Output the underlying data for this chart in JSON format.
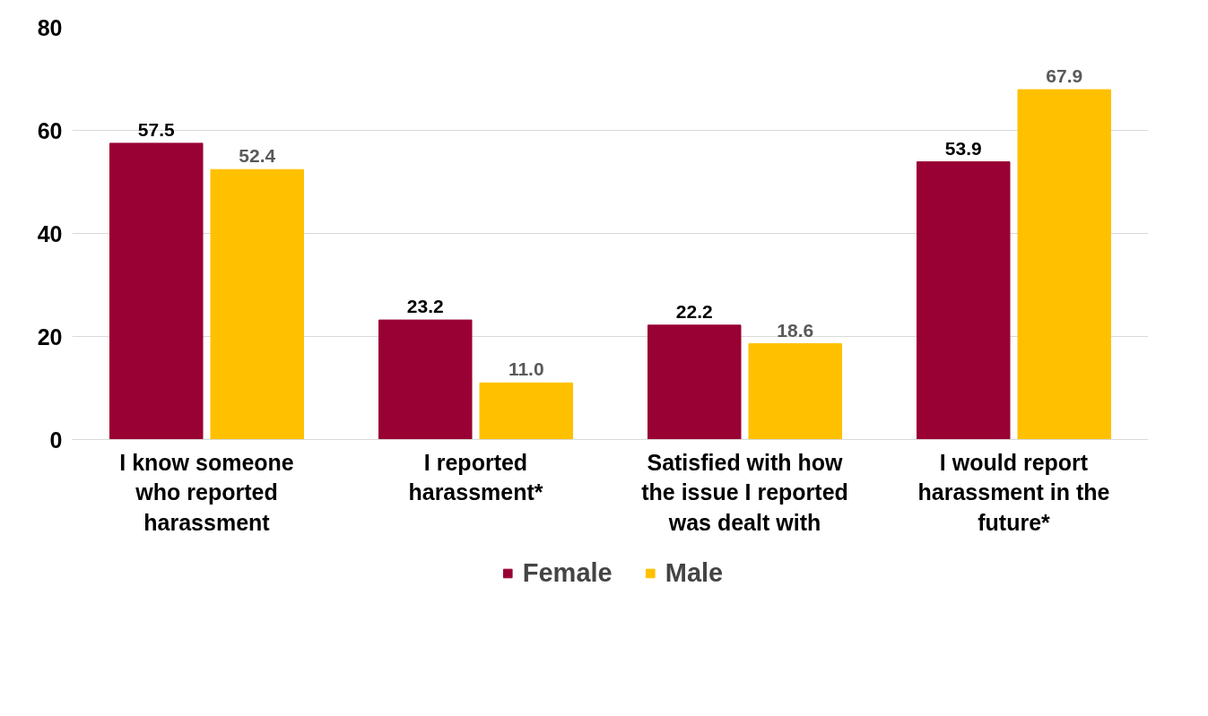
{
  "chart_data": {
    "type": "bar",
    "categories": [
      "I know someone\nwho reported\nharassment",
      "I reported\nharassment*",
      "Satisfied with how\nthe issue I reported\nwas dealt with",
      "I would report\nharassment in the\nfuture*"
    ],
    "series": [
      {
        "name": "Female",
        "color": "#990033",
        "values": [
          57.5,
          23.2,
          22.2,
          53.9
        ],
        "value_labels": [
          "57.5",
          "23.2",
          "22.2",
          "53.9"
        ]
      },
      {
        "name": "Male",
        "color": "#ffc000",
        "values": [
          52.4,
          11.0,
          18.6,
          67.9
        ],
        "value_labels": [
          "52.4",
          "11.0",
          "18.6",
          "67.9"
        ]
      }
    ],
    "ylim": [
      0,
      80
    ],
    "yticks": [
      0,
      20,
      40,
      60,
      80
    ],
    "grid": "y",
    "legend": "bottom"
  }
}
